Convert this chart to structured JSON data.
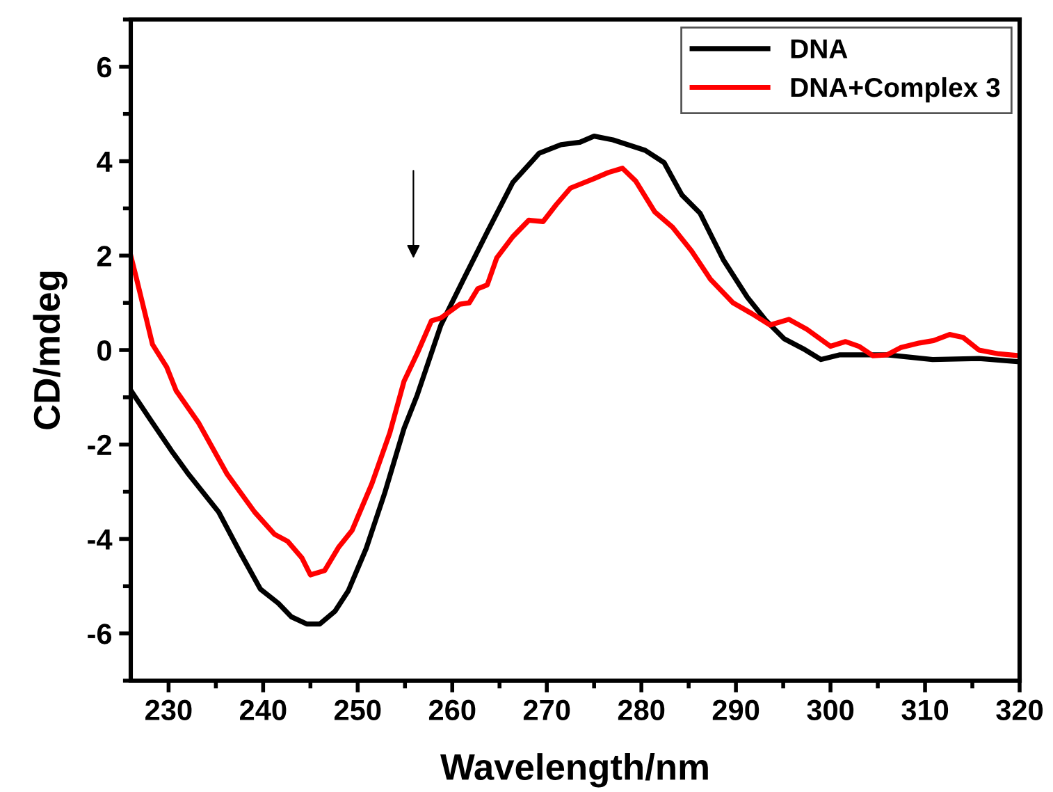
{
  "chart_data": {
    "type": "line",
    "xlabel": "Wavelength/nm",
    "ylabel": "CD/mdeg",
    "xlim": [
      226,
      320
    ],
    "xticks": [
      230,
      240,
      250,
      260,
      270,
      280,
      290,
      300,
      310,
      320
    ],
    "ylim": [
      -7,
      7
    ],
    "yticks": [
      -6,
      -4,
      -2,
      0,
      2,
      4,
      6
    ],
    "grid": false,
    "legend": "top right",
    "marker": "none",
    "line_style": "solid",
    "series": [
      {
        "name": "DNA",
        "color": "#000000",
        "x": [
          226,
          228,
          230.3,
          232,
          235.3,
          237.6,
          239.7,
          241.6,
          243,
          244.6,
          246,
          247.6,
          249,
          250.9,
          252.9,
          254.9,
          256.3,
          258.8,
          261.2,
          263.7,
          266.4,
          269.2,
          271.5,
          273.5,
          275,
          277,
          280.4,
          282.4,
          284.3,
          286.2,
          288.7,
          291.2,
          293.2,
          295.1,
          297.1,
          299,
          301,
          306,
          310.8,
          315.7,
          320
        ],
        "values": [
          -0.85,
          -1.45,
          -2.13,
          -2.6,
          -3.43,
          -4.3,
          -5.06,
          -5.36,
          -5.65,
          -5.8,
          -5.8,
          -5.53,
          -5.1,
          -4.2,
          -3.0,
          -1.66,
          -0.95,
          0.53,
          1.5,
          2.5,
          3.55,
          4.17,
          4.35,
          4.4,
          4.53,
          4.45,
          4.23,
          3.97,
          3.28,
          2.9,
          1.9,
          1.12,
          0.62,
          0.24,
          0.03,
          -0.2,
          -0.1,
          -0.1,
          -0.2,
          -0.18,
          -0.25
        ]
      },
      {
        "name": "DNA+Complex 3",
        "color": "#ff0000",
        "x": [
          226,
          226.5,
          227.6,
          228.3,
          229.8,
          230.8,
          233.2,
          236.2,
          239.1,
          241.2,
          242.6,
          244.1,
          245,
          246.5,
          248,
          249.4,
          251.5,
          253.4,
          254.9,
          256.3,
          257.8,
          258.8,
          260.8,
          261.8,
          262.7,
          263.7,
          264.7,
          266.4,
          268.1,
          269.6,
          271,
          272.5,
          275,
          276.5,
          278,
          279.4,
          281.4,
          283.3,
          285.3,
          287.3,
          289.7,
          291.7,
          293.6,
          295.6,
          297.5,
          300,
          301.6,
          303,
          304.5,
          306,
          307.4,
          309.4,
          310.9,
          312.6,
          314,
          315.7,
          317.8,
          320
        ],
        "values": [
          2.0,
          1.6,
          0.7,
          0.12,
          -0.36,
          -0.86,
          -1.55,
          -2.63,
          -3.43,
          -3.9,
          -4.05,
          -4.4,
          -4.76,
          -4.67,
          -4.17,
          -3.82,
          -2.83,
          -1.75,
          -0.66,
          -0.07,
          0.62,
          0.68,
          0.97,
          1.0,
          1.3,
          1.38,
          1.95,
          2.4,
          2.75,
          2.72,
          3.08,
          3.43,
          3.63,
          3.76,
          3.85,
          3.58,
          2.93,
          2.6,
          2.1,
          1.5,
          1.0,
          0.77,
          0.53,
          0.65,
          0.44,
          0.08,
          0.18,
          0.08,
          -0.12,
          -0.1,
          0.05,
          0.15,
          0.2,
          0.33,
          0.27,
          0.0,
          -0.08,
          -0.12
        ]
      }
    ]
  }
}
